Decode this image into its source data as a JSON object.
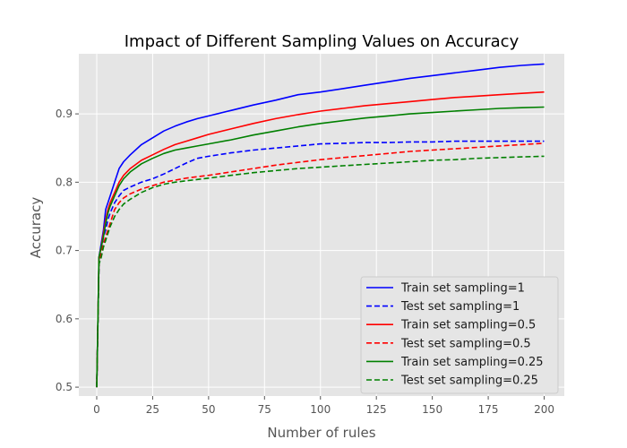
{
  "chart_data": {
    "type": "line",
    "title": "Impact of Different Sampling Values on Accuracy",
    "xlabel": "Number of rules",
    "ylabel": "Accuracy",
    "xlim": [
      -8,
      209
    ],
    "ylim": [
      0.487,
      0.988
    ],
    "xticks": [
      0,
      25,
      50,
      75,
      100,
      125,
      150,
      175,
      200
    ],
    "yticks": [
      0.5,
      0.6,
      0.7,
      0.8,
      0.9
    ],
    "ytick_labels": [
      "0.5",
      "0.6",
      "0.7",
      "0.8",
      "0.9"
    ],
    "grid": true,
    "legend_position": "lower-right",
    "x": [
      0,
      1,
      2,
      3,
      4,
      5,
      6,
      8,
      10,
      12,
      15,
      20,
      25,
      30,
      35,
      40,
      45,
      50,
      60,
      70,
      80,
      90,
      100,
      110,
      120,
      130,
      140,
      150,
      160,
      170,
      180,
      190,
      200
    ],
    "series": [
      {
        "name": "Train set sampling=1",
        "color": "#0000ff",
        "dash": "solid",
        "values": [
          0.5,
          0.69,
          0.71,
          0.73,
          0.76,
          0.77,
          0.78,
          0.8,
          0.82,
          0.83,
          0.84,
          0.855,
          0.865,
          0.875,
          0.882,
          0.888,
          0.893,
          0.897,
          0.905,
          0.913,
          0.92,
          0.928,
          0.932,
          0.937,
          0.942,
          0.947,
          0.952,
          0.956,
          0.96,
          0.964,
          0.968,
          0.971,
          0.973
        ]
      },
      {
        "name": "Test set sampling=1",
        "color": "#0000ff",
        "dash": "dashed",
        "values": [
          0.5,
          0.68,
          0.7,
          0.72,
          0.73,
          0.745,
          0.755,
          0.77,
          0.78,
          0.788,
          0.793,
          0.8,
          0.805,
          0.812,
          0.82,
          0.828,
          0.835,
          0.838,
          0.843,
          0.847,
          0.85,
          0.853,
          0.856,
          0.857,
          0.858,
          0.858,
          0.859,
          0.859,
          0.86,
          0.86,
          0.86,
          0.86,
          0.86
        ]
      },
      {
        "name": "Train set sampling=0.5",
        "color": "#ff0000",
        "dash": "solid",
        "values": [
          0.5,
          0.69,
          0.705,
          0.725,
          0.745,
          0.76,
          0.77,
          0.785,
          0.8,
          0.81,
          0.82,
          0.832,
          0.84,
          0.848,
          0.855,
          0.86,
          0.865,
          0.87,
          0.878,
          0.886,
          0.893,
          0.899,
          0.904,
          0.908,
          0.912,
          0.915,
          0.918,
          0.921,
          0.924,
          0.926,
          0.928,
          0.93,
          0.932
        ]
      },
      {
        "name": "Test set sampling=0.5",
        "color": "#ff0000",
        "dash": "dashed",
        "values": [
          0.5,
          0.685,
          0.695,
          0.71,
          0.72,
          0.73,
          0.74,
          0.76,
          0.77,
          0.777,
          0.783,
          0.79,
          0.795,
          0.8,
          0.803,
          0.806,
          0.808,
          0.81,
          0.815,
          0.82,
          0.825,
          0.829,
          0.833,
          0.836,
          0.839,
          0.842,
          0.845,
          0.847,
          0.849,
          0.851,
          0.853,
          0.855,
          0.857
        ]
      },
      {
        "name": "Train set sampling=0.25",
        "color": "#008000",
        "dash": "solid",
        "values": [
          0.5,
          0.69,
          0.705,
          0.72,
          0.74,
          0.755,
          0.765,
          0.78,
          0.795,
          0.805,
          0.815,
          0.827,
          0.835,
          0.842,
          0.847,
          0.85,
          0.853,
          0.856,
          0.862,
          0.869,
          0.875,
          0.881,
          0.886,
          0.89,
          0.894,
          0.897,
          0.9,
          0.902,
          0.904,
          0.906,
          0.908,
          0.909,
          0.91
        ]
      },
      {
        "name": "Test set sampling=0.25",
        "color": "#008000",
        "dash": "dashed",
        "values": [
          0.5,
          0.68,
          0.69,
          0.705,
          0.715,
          0.725,
          0.735,
          0.75,
          0.76,
          0.768,
          0.775,
          0.785,
          0.792,
          0.797,
          0.8,
          0.802,
          0.804,
          0.806,
          0.81,
          0.814,
          0.817,
          0.82,
          0.822,
          0.824,
          0.826,
          0.828,
          0.83,
          0.832,
          0.833,
          0.835,
          0.836,
          0.837,
          0.838
        ]
      }
    ]
  }
}
